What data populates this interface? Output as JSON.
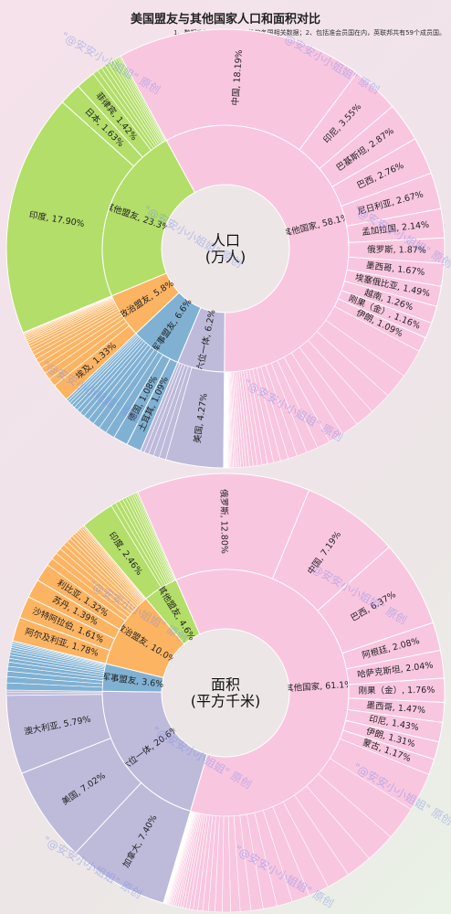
{
  "title": "美国盟友与其他国家人口和面积对比",
  "note": "1、数据来源：世行最新年份的各国相关数据；2、包括准会员国在内，英联邦共有59个成员国。",
  "watermark": {
    "text": "\"@安安小小姐姐\"",
    "tag": "原创"
  },
  "colors": {
    "other_countries": "#f9c6e0",
    "other_allies": "#b3de69",
    "political_allies": "#fdb462",
    "military_allies": "#80b1d3",
    "six_in_one": "#bebada",
    "center": "#ece6e6"
  },
  "chart_data": [
    {
      "type": "sunburst",
      "center_label": [
        "人口",
        "(万人)"
      ],
      "groups": [
        {
          "key": "six_in_one",
          "label": "六位一体, 6.2%",
          "value": 6.2,
          "countries": [
            {
              "label": "美国, 4.27%",
              "value": 4.27
            }
          ],
          "minor_count": 5
        },
        {
          "key": "military_allies",
          "label": "军事盟友, 6.6%",
          "value": 6.6,
          "countries": [
            {
              "label": "土耳其, 1.09%",
              "value": 1.09
            },
            {
              "label": "德国, 1.08%",
              "value": 1.08
            }
          ],
          "minor_count": 12
        },
        {
          "key": "political_allies",
          "label": "政治盟友, 5.8%",
          "value": 5.8,
          "countries": [
            {
              "label": "埃及, 1.33%",
              "value": 1.33
            }
          ],
          "minor_count": 18
        },
        {
          "key": "other_allies",
          "label": "其他盟友, 23.3%",
          "value": 23.3,
          "countries": [
            {
              "label": "印度, 17.90%",
              "value": 17.9
            },
            {
              "label": "日本, 1.63%",
              "value": 1.63
            },
            {
              "label": "菲律宾, 1.42%",
              "value": 1.42
            }
          ],
          "minor_count": 10
        },
        {
          "key": "other_countries",
          "label": "其他国家, 58.1%",
          "value": 58.1,
          "countries": [
            {
              "label": "中国, 18.19%",
              "value": 18.19
            },
            {
              "label": "印尼, 3.55%",
              "value": 3.55
            },
            {
              "label": "巴基斯坦, 2.87%",
              "value": 2.87
            },
            {
              "label": "巴西, 2.76%",
              "value": 2.76
            },
            {
              "label": "尼日利亚, 2.67%",
              "value": 2.67
            },
            {
              "label": "孟加拉国, 2.14%",
              "value": 2.14
            },
            {
              "label": "俄罗斯, 1.87%",
              "value": 1.87
            },
            {
              "label": "墨西哥, 1.67%",
              "value": 1.67
            },
            {
              "label": "埃塞俄比亚, 1.49%",
              "value": 1.49
            },
            {
              "label": "越南, 1.26%",
              "value": 1.26
            },
            {
              "label": "刚果（金）, 1.16%",
              "value": 1.16
            },
            {
              "label": "伊朗, 1.09%",
              "value": 1.09
            }
          ],
          "minor_count": 40
        }
      ]
    },
    {
      "type": "sunburst",
      "center_label": [
        "面积",
        "(平方千米)"
      ],
      "groups": [
        {
          "key": "six_in_one",
          "label": "六位一体, 20.6%",
          "value": 20.6,
          "countries": [
            {
              "label": "加拿大, 7.40%",
              "value": 7.4
            },
            {
              "label": "美国, 7.02%",
              "value": 7.02
            },
            {
              "label": "澳大利亚, 5.79%",
              "value": 5.79
            }
          ],
          "minor_count": 2
        },
        {
          "key": "military_allies",
          "label": "军事盟友, 3.6%",
          "value": 3.6,
          "countries": [],
          "minor_count": 14
        },
        {
          "key": "political_allies",
          "label": "政治盟友, 10.0%",
          "value": 10.0,
          "countries": [
            {
              "label": "阿尔及利亚, 1.78%",
              "value": 1.78
            },
            {
              "label": "沙特阿拉伯, 1.61%",
              "value": 1.61
            },
            {
              "label": "苏丹, 1.39%",
              "value": 1.39
            },
            {
              "label": "利比亚, 1.32%",
              "value": 1.32
            }
          ],
          "minor_count": 14
        },
        {
          "key": "other_allies",
          "label": "其他盟友, 4.6%",
          "value": 4.6,
          "countries": [
            {
              "label": "印度, 2.46%",
              "value": 2.46
            }
          ],
          "minor_count": 10
        },
        {
          "key": "other_countries",
          "label": "其他国家, 61.1%",
          "value": 61.1,
          "countries": [
            {
              "label": "俄罗斯, 12.80%",
              "value": 12.8
            },
            {
              "label": "中国, 7.19%",
              "value": 7.19
            },
            {
              "label": "巴西, 6.37%",
              "value": 6.37
            },
            {
              "label": "阿根廷, 2.08%",
              "value": 2.08
            },
            {
              "label": "哈萨克斯坦, 2.04%",
              "value": 2.04
            },
            {
              "label": "刚果（金）, 1.76%",
              "value": 1.76
            },
            {
              "label": "墨西哥, 1.47%",
              "value": 1.47
            },
            {
              "label": "印尼, 1.43%",
              "value": 1.43
            },
            {
              "label": "伊朗, 1.31%",
              "value": 1.31
            },
            {
              "label": "蒙古, 1.17%",
              "value": 1.17
            }
          ],
          "minor_count": 40
        }
      ]
    }
  ]
}
